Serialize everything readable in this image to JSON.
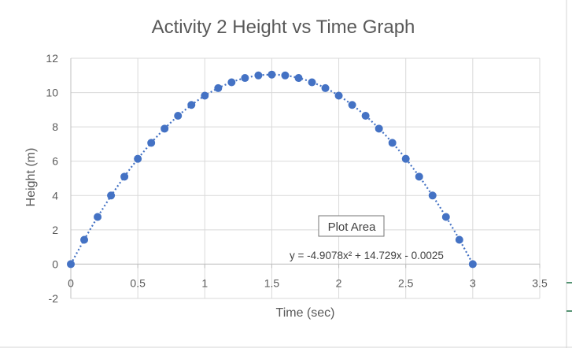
{
  "chart_data": {
    "type": "scatter",
    "title": "Activity 2 Height vs Time Graph",
    "xlabel": "Time (sec)",
    "ylabel": "Height (m)",
    "xlim": [
      0,
      3.5
    ],
    "ylim": [
      -2,
      12
    ],
    "x_ticks": [
      0,
      0.5,
      1,
      1.5,
      2,
      2.5,
      3,
      3.5
    ],
    "x_tick_labels": [
      "0",
      "0.5",
      "1",
      "1.5",
      "2",
      "2.5",
      "3",
      "3.5"
    ],
    "y_ticks": [
      -2,
      0,
      2,
      4,
      6,
      8,
      10,
      12
    ],
    "y_tick_labels": [
      "-2",
      "0",
      "2",
      "4",
      "6",
      "8",
      "10",
      "12"
    ],
    "grid": true,
    "marker_color": "#4472c4",
    "trendline": {
      "type": "polynomial",
      "order": 2,
      "coefficients": [
        -4.9078,
        14.729,
        -0.0025
      ],
      "style": "dotted",
      "color": "#4472c4",
      "equation_label": "y = -4.9078x² + 14.729x - 0.0025"
    },
    "tooltip": "Plot Area",
    "series": [
      {
        "x": [
          0,
          0.1,
          0.2,
          0.3,
          0.4,
          0.5,
          0.6,
          0.7,
          0.8,
          0.9,
          1.0,
          1.1,
          1.2,
          1.3,
          1.4,
          1.5,
          1.6,
          1.7,
          1.8,
          1.9,
          2.0,
          2.1,
          2.2,
          2.3,
          2.4,
          2.5,
          2.6,
          2.7,
          2.8,
          2.9,
          3.0
        ],
        "y": [
          0,
          1.42,
          2.75,
          4.0,
          5.1,
          6.14,
          7.07,
          7.9,
          8.65,
          9.28,
          9.82,
          10.26,
          10.6,
          10.85,
          11.0,
          11.05,
          11.0,
          10.85,
          10.6,
          10.26,
          9.82,
          9.28,
          8.65,
          7.9,
          7.07,
          6.14,
          5.1,
          4.0,
          2.75,
          1.42,
          0
        ]
      }
    ]
  }
}
